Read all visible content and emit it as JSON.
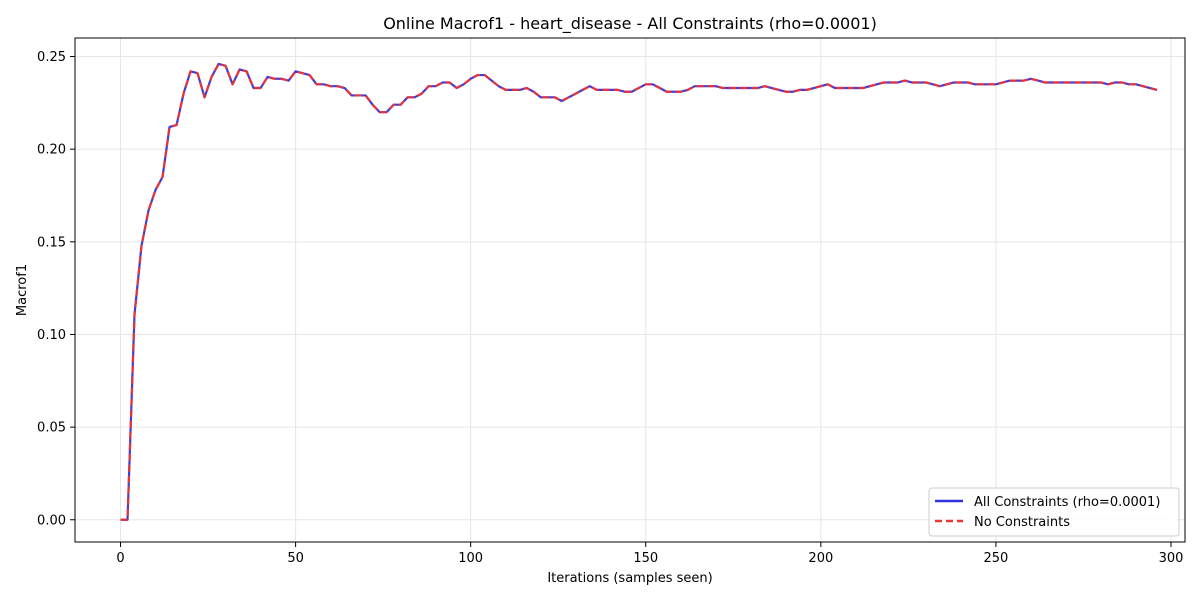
{
  "chart_data": {
    "type": "line",
    "title": "Online Macrof1 - heart_disease - All Constraints (rho=0.0001)",
    "xlabel": "Iterations (samples seen)",
    "ylabel": "Macrof1",
    "xlim": [
      -13,
      304
    ],
    "ylim": [
      -0.012,
      0.26
    ],
    "xticks": [
      0,
      50,
      100,
      150,
      200,
      250,
      300
    ],
    "yticks": [
      0.0,
      0.05,
      0.1,
      0.15,
      0.2,
      0.25
    ],
    "xtick_labels": [
      "0",
      "50",
      "100",
      "150",
      "200",
      "250",
      "300"
    ],
    "ytick_labels": [
      "0.00",
      "0.05",
      "0.10",
      "0.15",
      "0.20",
      "0.25"
    ],
    "grid": true,
    "legend_position": "lower-right",
    "series": [
      {
        "name": "All Constraints (rho=0.0001)",
        "color": "#3333dd",
        "style": "solid",
        "x": [
          0,
          2,
          4,
          6,
          8,
          10,
          12,
          14,
          16,
          18,
          20,
          22,
          24,
          26,
          28,
          30,
          32,
          34,
          36,
          38,
          40,
          42,
          44,
          46,
          48,
          50,
          52,
          54,
          56,
          58,
          60,
          62,
          64,
          66,
          68,
          70,
          72,
          74,
          76,
          78,
          80,
          82,
          84,
          86,
          88,
          90,
          92,
          94,
          96,
          98,
          100,
          102,
          104,
          106,
          108,
          110,
          112,
          114,
          116,
          118,
          120,
          122,
          124,
          126,
          128,
          130,
          132,
          134,
          136,
          138,
          140,
          142,
          144,
          146,
          148,
          150,
          152,
          154,
          156,
          158,
          160,
          162,
          164,
          166,
          168,
          170,
          172,
          174,
          176,
          178,
          180,
          182,
          184,
          186,
          188,
          190,
          192,
          194,
          196,
          198,
          200,
          202,
          204,
          206,
          208,
          210,
          212,
          214,
          216,
          218,
          220,
          222,
          224,
          226,
          228,
          230,
          232,
          234,
          236,
          238,
          240,
          242,
          244,
          246,
          248,
          250,
          252,
          254,
          256,
          258,
          260,
          262,
          264,
          266,
          268,
          270,
          272,
          274,
          276,
          278,
          280,
          282,
          284,
          286,
          288,
          290,
          292,
          294,
          296
        ],
        "y": [
          0.0,
          0.0,
          0.111,
          0.148,
          0.167,
          0.178,
          0.185,
          0.212,
          0.213,
          0.23,
          0.242,
          0.241,
          0.228,
          0.239,
          0.246,
          0.245,
          0.235,
          0.243,
          0.242,
          0.233,
          0.233,
          0.239,
          0.238,
          0.238,
          0.237,
          0.242,
          0.241,
          0.24,
          0.235,
          0.235,
          0.234,
          0.234,
          0.233,
          0.229,
          0.229,
          0.229,
          0.224,
          0.22,
          0.22,
          0.224,
          0.224,
          0.228,
          0.228,
          0.23,
          0.234,
          0.234,
          0.236,
          0.236,
          0.233,
          0.235,
          0.238,
          0.24,
          0.24,
          0.237,
          0.234,
          0.232,
          0.232,
          0.232,
          0.233,
          0.231,
          0.228,
          0.228,
          0.228,
          0.226,
          0.228,
          0.23,
          0.232,
          0.234,
          0.232,
          0.232,
          0.232,
          0.232,
          0.231,
          0.231,
          0.233,
          0.235,
          0.235,
          0.233,
          0.231,
          0.231,
          0.231,
          0.232,
          0.234,
          0.234,
          0.234,
          0.234,
          0.233,
          0.233,
          0.233,
          0.233,
          0.233,
          0.233,
          0.234,
          0.233,
          0.232,
          0.231,
          0.231,
          0.232,
          0.232,
          0.233,
          0.234,
          0.235,
          0.233,
          0.233,
          0.233,
          0.233,
          0.233,
          0.234,
          0.235,
          0.236,
          0.236,
          0.236,
          0.237,
          0.236,
          0.236,
          0.236,
          0.235,
          0.234,
          0.235,
          0.236,
          0.236,
          0.236,
          0.235,
          0.235,
          0.235,
          0.235,
          0.236,
          0.237,
          0.237,
          0.237,
          0.238,
          0.237,
          0.236,
          0.236,
          0.236,
          0.236,
          0.236,
          0.236,
          0.236,
          0.236,
          0.236,
          0.235,
          0.236,
          0.236,
          0.235,
          0.235,
          0.234,
          0.233,
          0.232
        ]
      },
      {
        "name": "No Constraints",
        "color": "#ee3333",
        "style": "dashed",
        "x": [
          0,
          2,
          4,
          6,
          8,
          10,
          12,
          14,
          16,
          18,
          20,
          22,
          24,
          26,
          28,
          30,
          32,
          34,
          36,
          38,
          40,
          42,
          44,
          46,
          48,
          50,
          52,
          54,
          56,
          58,
          60,
          62,
          64,
          66,
          68,
          70,
          72,
          74,
          76,
          78,
          80,
          82,
          84,
          86,
          88,
          90,
          92,
          94,
          96,
          98,
          100,
          102,
          104,
          106,
          108,
          110,
          112,
          114,
          116,
          118,
          120,
          122,
          124,
          126,
          128,
          130,
          132,
          134,
          136,
          138,
          140,
          142,
          144,
          146,
          148,
          150,
          152,
          154,
          156,
          158,
          160,
          162,
          164,
          166,
          168,
          170,
          172,
          174,
          176,
          178,
          180,
          182,
          184,
          186,
          188,
          190,
          192,
          194,
          196,
          198,
          200,
          202,
          204,
          206,
          208,
          210,
          212,
          214,
          216,
          218,
          220,
          222,
          224,
          226,
          228,
          230,
          232,
          234,
          236,
          238,
          240,
          242,
          244,
          246,
          248,
          250,
          252,
          254,
          256,
          258,
          260,
          262,
          264,
          266,
          268,
          270,
          272,
          274,
          276,
          278,
          280,
          282,
          284,
          286,
          288,
          290,
          292,
          294,
          296
        ],
        "y": [
          0.0,
          0.0,
          0.111,
          0.148,
          0.167,
          0.178,
          0.185,
          0.212,
          0.213,
          0.23,
          0.242,
          0.241,
          0.228,
          0.239,
          0.246,
          0.245,
          0.235,
          0.243,
          0.242,
          0.233,
          0.233,
          0.239,
          0.238,
          0.238,
          0.237,
          0.242,
          0.241,
          0.24,
          0.235,
          0.235,
          0.234,
          0.234,
          0.233,
          0.229,
          0.229,
          0.229,
          0.224,
          0.22,
          0.22,
          0.224,
          0.224,
          0.228,
          0.228,
          0.23,
          0.234,
          0.234,
          0.236,
          0.236,
          0.233,
          0.235,
          0.238,
          0.24,
          0.24,
          0.237,
          0.234,
          0.232,
          0.232,
          0.232,
          0.233,
          0.231,
          0.228,
          0.228,
          0.228,
          0.226,
          0.228,
          0.23,
          0.232,
          0.234,
          0.232,
          0.232,
          0.232,
          0.232,
          0.231,
          0.231,
          0.233,
          0.235,
          0.235,
          0.233,
          0.231,
          0.231,
          0.231,
          0.232,
          0.234,
          0.234,
          0.234,
          0.234,
          0.233,
          0.233,
          0.233,
          0.233,
          0.233,
          0.233,
          0.234,
          0.233,
          0.232,
          0.231,
          0.231,
          0.232,
          0.232,
          0.233,
          0.234,
          0.235,
          0.233,
          0.233,
          0.233,
          0.233,
          0.233,
          0.234,
          0.235,
          0.236,
          0.236,
          0.236,
          0.237,
          0.236,
          0.236,
          0.236,
          0.235,
          0.234,
          0.235,
          0.236,
          0.236,
          0.236,
          0.235,
          0.235,
          0.235,
          0.235,
          0.236,
          0.237,
          0.237,
          0.237,
          0.238,
          0.237,
          0.236,
          0.236,
          0.236,
          0.236,
          0.236,
          0.236,
          0.236,
          0.236,
          0.236,
          0.235,
          0.236,
          0.236,
          0.235,
          0.235,
          0.234,
          0.233,
          0.232
        ]
      }
    ]
  }
}
